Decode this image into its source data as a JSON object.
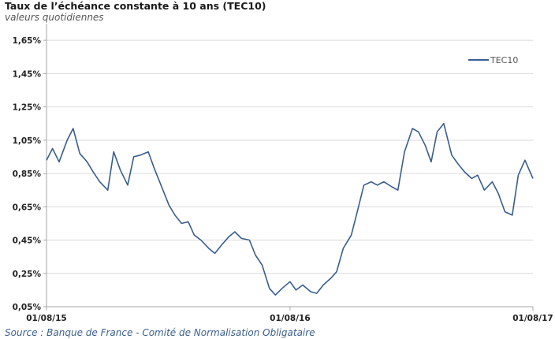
{
  "header": {
    "title": "Taux de l’échéance constante à 10 ans (TEC10)",
    "subtitle": "valeurs quotidiennes"
  },
  "footer": {
    "source_label": "Source :",
    "source_text": "Banque de France - Comité de Normalisation Obligataire"
  },
  "colors": {
    "series": "#3a5d8f",
    "grid": "#d9d9d9",
    "axis": "#a6a6a6"
  },
  "chart_data": {
    "type": "line",
    "title": "Taux de l’échéance constante à 10 ans (TEC10)",
    "subtitle": "valeurs quotidiennes",
    "xlabel": "",
    "ylabel": "",
    "ylim": [
      0.05,
      1.75
    ],
    "xlim": [
      "2015-08-01",
      "2017-08-01"
    ],
    "x_ticks": [
      "01/08/15",
      "01/08/16",
      "01/08/17"
    ],
    "y_ticks": [
      "0,05%",
      "0,25%",
      "0,45%",
      "0,65%",
      "0,85%",
      "1,05%",
      "1,25%",
      "1,45%",
      "1,65%"
    ],
    "grid": true,
    "legend": {
      "position": "top-right",
      "entries": [
        "TEC10"
      ]
    },
    "series": [
      {
        "name": "TEC10",
        "x": [
          "2015-08-01",
          "2015-08-10",
          "2015-08-20",
          "2015-09-01",
          "2015-09-10",
          "2015-09-20",
          "2015-10-01",
          "2015-10-10",
          "2015-10-20",
          "2015-11-01",
          "2015-11-10",
          "2015-11-20",
          "2015-12-01",
          "2015-12-10",
          "2015-12-20",
          "2016-01-01",
          "2016-01-10",
          "2016-01-20",
          "2016-02-01",
          "2016-02-10",
          "2016-02-20",
          "2016-03-01",
          "2016-03-10",
          "2016-03-20",
          "2016-04-01",
          "2016-04-10",
          "2016-04-20",
          "2016-05-01",
          "2016-05-10",
          "2016-05-20",
          "2016-06-01",
          "2016-06-10",
          "2016-06-20",
          "2016-07-01",
          "2016-07-10",
          "2016-07-20",
          "2016-08-01",
          "2016-08-10",
          "2016-08-20",
          "2016-09-01",
          "2016-09-10",
          "2016-09-20",
          "2016-10-01",
          "2016-10-10",
          "2016-10-20",
          "2016-11-01",
          "2016-11-10",
          "2016-11-20",
          "2016-12-01",
          "2016-12-10",
          "2016-12-20",
          "2017-01-01",
          "2017-01-10",
          "2017-01-20",
          "2017-02-01",
          "2017-02-10",
          "2017-02-20",
          "2017-03-01",
          "2017-03-10",
          "2017-03-20",
          "2017-04-01",
          "2017-04-10",
          "2017-04-20",
          "2017-05-01",
          "2017-05-10",
          "2017-05-20",
          "2017-06-01",
          "2017-06-10",
          "2017-06-20",
          "2017-07-01",
          "2017-07-10",
          "2017-07-20",
          "2017-08-01"
        ],
        "values": [
          0.93,
          1.0,
          0.92,
          1.05,
          1.12,
          0.97,
          0.92,
          0.86,
          0.8,
          0.75,
          0.98,
          0.87,
          0.78,
          0.95,
          0.96,
          0.98,
          0.88,
          0.78,
          0.66,
          0.6,
          0.55,
          0.56,
          0.48,
          0.45,
          0.4,
          0.37,
          0.42,
          0.47,
          0.5,
          0.46,
          0.45,
          0.36,
          0.3,
          0.16,
          0.12,
          0.16,
          0.2,
          0.15,
          0.18,
          0.14,
          0.13,
          0.18,
          0.22,
          0.26,
          0.4,
          0.48,
          0.62,
          0.78,
          0.8,
          0.78,
          0.8,
          0.77,
          0.75,
          0.98,
          1.12,
          1.1,
          1.02,
          0.92,
          1.1,
          1.15,
          0.96,
          0.91,
          0.86,
          0.82,
          0.84,
          0.75,
          0.8,
          0.73,
          0.62,
          0.6,
          0.84,
          0.93,
          0.82
        ]
      }
    ]
  }
}
